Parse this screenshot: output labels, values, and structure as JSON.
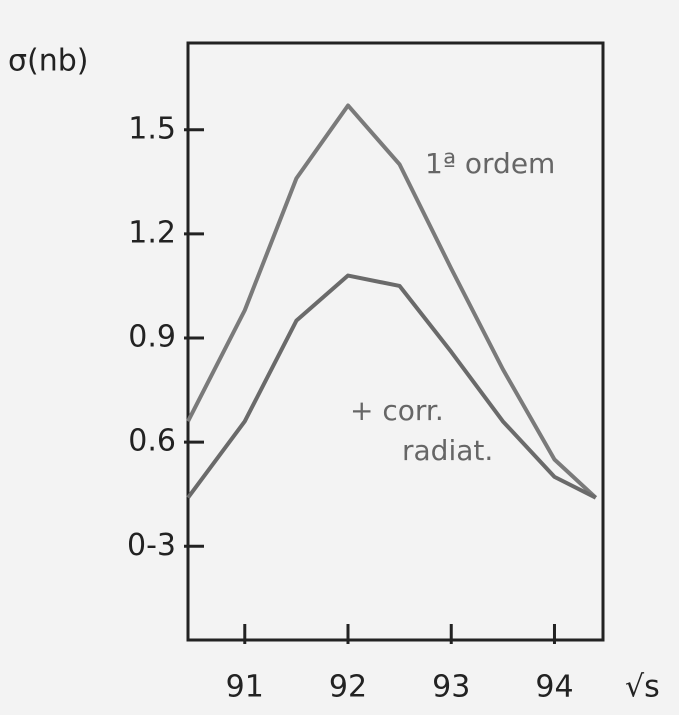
{
  "chart_data": {
    "type": "line",
    "y_label": "σ(nb)",
    "x_label": "√s",
    "x": [
      90.45,
      91,
      91.5,
      92,
      92.5,
      93,
      93.5,
      94,
      94.4
    ],
    "series": [
      {
        "name": "1ª ordem",
        "color": "#7a7a7a",
        "values": [
          0.66,
          0.98,
          1.36,
          1.57,
          1.4,
          1.1,
          0.81,
          0.55,
          0.44
        ]
      },
      {
        "name": "+ corr. radiat.",
        "color": "#6a6a6a",
        "values": [
          0.44,
          0.66,
          0.95,
          1.08,
          1.05,
          0.86,
          0.66,
          0.5,
          0.44
        ]
      }
    ],
    "xlim": [
      90.45,
      94.47
    ],
    "xticks": [
      91,
      92,
      93,
      94
    ],
    "ylim": [
      0.03,
      1.75
    ],
    "yticks": [
      {
        "value": 0.3,
        "label": "0-3"
      },
      0.6,
      0.9,
      1.2,
      1.5
    ],
    "grid": false
  }
}
